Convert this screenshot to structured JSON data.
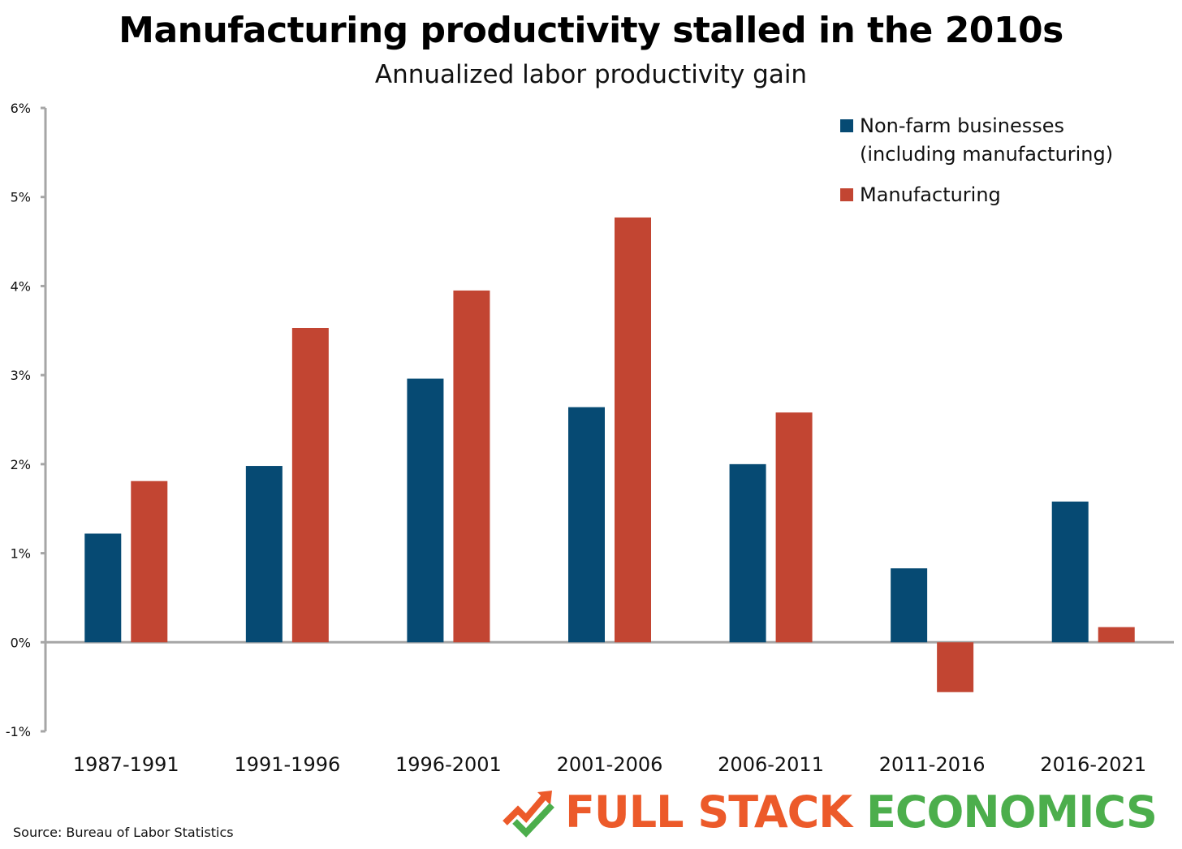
{
  "title": "Manufacturing productivity stalled in the 2010s",
  "subtitle": "Annualized labor productivity gain",
  "source": "Source: Bureau of Labor Statistics",
  "logo": {
    "part1": "FULL STACK",
    "part2": "ECONOMICS",
    "color1": "#ec5a2a",
    "color2": "#4cae4c",
    "icon": "trend-arrow-check-icon"
  },
  "chart_data": {
    "type": "bar",
    "title": "Manufacturing productivity stalled in the 2010s",
    "subtitle": "Annualized labor productivity gain",
    "categories": [
      "1987-1991",
      "1991-1996",
      "1996-2001",
      "2001-2006",
      "2006-2011",
      "2011-2016",
      "2016-2021"
    ],
    "series": [
      {
        "name": "Non-farm businesses (including manufacturing)",
        "legend_lines": [
          "Non-farm businesses",
          "(including manufacturing)"
        ],
        "color": "#064a73",
        "values": [
          1.22,
          1.98,
          2.96,
          2.64,
          2.0,
          0.83,
          1.58
        ]
      },
      {
        "name": "Manufacturing",
        "legend_lines": [
          "Manufacturing"
        ],
        "color": "#c24532",
        "values": [
          1.81,
          3.53,
          3.95,
          4.77,
          2.58,
          -0.56,
          0.17
        ]
      }
    ],
    "ylim": [
      -1,
      6
    ],
    "yticks": [
      -1,
      0,
      1,
      2,
      3,
      4,
      5,
      6
    ],
    "ytick_labels": [
      "-1%",
      "0%",
      "1%",
      "2%",
      "3%",
      "4%",
      "5%",
      "6%"
    ],
    "xlabel": "",
    "ylabel": "",
    "grid": false,
    "legend_position": "top-right"
  }
}
